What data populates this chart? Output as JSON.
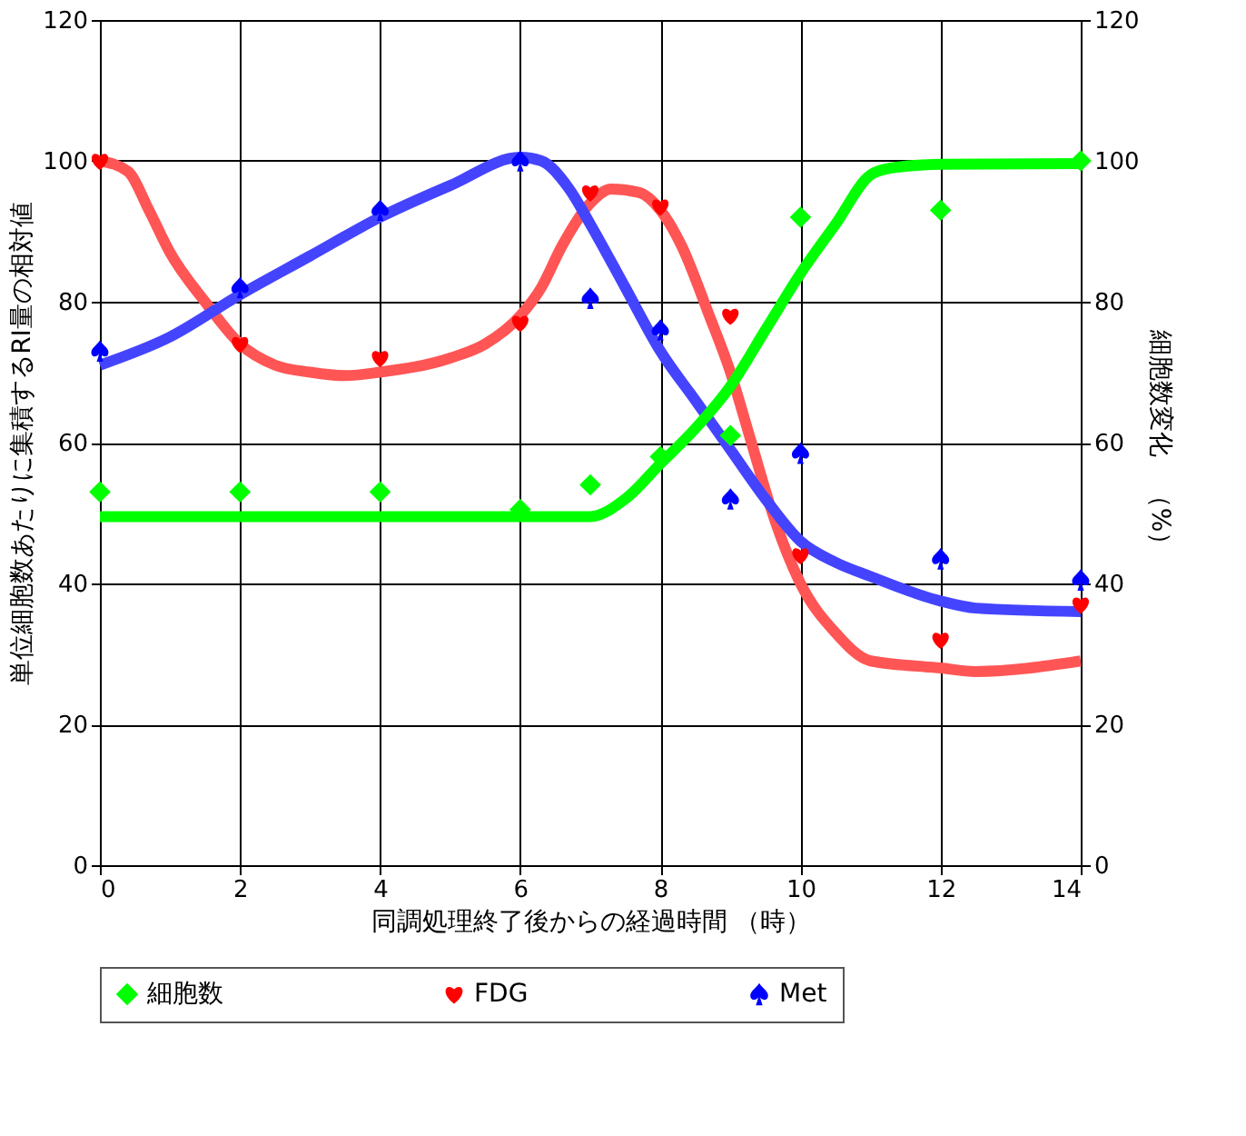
{
  "chart_data": {
    "type": "scatter",
    "xlabel": "同調処理終了後からの経過時間 （時）",
    "ylabel": "単位細胞数あたりに集積するRI量の相対値",
    "y2label": "細胞数変化　（%）",
    "xlim": [
      0,
      14
    ],
    "xticks": [
      0,
      2,
      4,
      6,
      8,
      10,
      12,
      14
    ],
    "ylim": [
      0,
      120
    ],
    "yticks": [
      0,
      20,
      40,
      60,
      80,
      100,
      120
    ],
    "y2lim": [
      0,
      120
    ],
    "y2ticks": [
      0,
      20,
      40,
      60,
      80,
      100,
      120
    ],
    "grid": true,
    "legend": "bottom",
    "series": [
      {
        "name": "細胞数",
        "marker": "diamond",
        "axis": "y2",
        "color": "#00ff00",
        "x": [
          0,
          2,
          4,
          6,
          7,
          8,
          9,
          10,
          12,
          14
        ],
        "values": [
          53,
          53,
          53,
          50.5,
          54,
          58,
          61,
          92,
          93,
          100
        ]
      },
      {
        "name": "FDG",
        "color": "#ff0000",
        "x": [
          0,
          2,
          4,
          6,
          7,
          8,
          9,
          10,
          12,
          14
        ],
        "values": [
          100,
          74,
          72,
          77,
          95.5,
          93.5,
          78,
          44,
          32,
          37
        ]
      },
      {
        "name": "Met",
        "color": "#0000ff",
        "x": [
          0,
          2,
          4,
          6,
          7,
          8,
          9,
          10,
          12,
          14
        ],
        "values": [
          73,
          82,
          93,
          100,
          80.5,
          76,
          52,
          58.5,
          43.5,
          40.5
        ]
      },
      {
        "type": "line",
        "axis": "y2",
        "color": "#00ff00",
        "x": [
          0,
          2,
          4,
          6,
          7,
          7.5,
          8,
          8.5,
          9,
          9.5,
          10,
          10.5,
          11,
          11.3,
          12,
          14
        ],
        "values": [
          49.5,
          49.5,
          49.5,
          49.5,
          49.5,
          52,
          57,
          62,
          68,
          76,
          84,
          91,
          98,
          99,
          99.5,
          99.6
        ]
      },
      {
        "type": "line",
        "color": "#ff5555",
        "x": [
          0,
          0.4,
          0.7,
          1,
          1.5,
          2,
          2.5,
          3,
          3.5,
          4,
          5,
          5.5,
          6,
          6.3,
          6.6,
          7,
          7.3,
          7.7,
          8,
          8.3,
          8.7,
          9,
          9.3,
          9.6,
          10,
          10.5,
          11,
          12,
          12.5,
          14
        ],
        "values": [
          100,
          98.5,
          93,
          87,
          80,
          74,
          71,
          70,
          69.5,
          70,
          72,
          74,
          78,
          82,
          88,
          94,
          96,
          95.5,
          93,
          88,
          78,
          70,
          60,
          50,
          40,
          33,
          29,
          28,
          27.5,
          29
        ]
      },
      {
        "type": "line",
        "color": "#4444ff",
        "x": [
          0,
          1,
          2,
          3,
          4,
          5,
          6,
          6.3,
          6.7,
          7,
          7.5,
          8,
          8.5,
          9,
          9.5,
          10,
          10.5,
          11,
          12,
          12.5,
          14
        ],
        "values": [
          71,
          75,
          81,
          86.5,
          92,
          96.5,
          100.5,
          100,
          96,
          91,
          82,
          73,
          66,
          59,
          52,
          46,
          43,
          41,
          37.5,
          36.5,
          36
        ]
      }
    ]
  }
}
